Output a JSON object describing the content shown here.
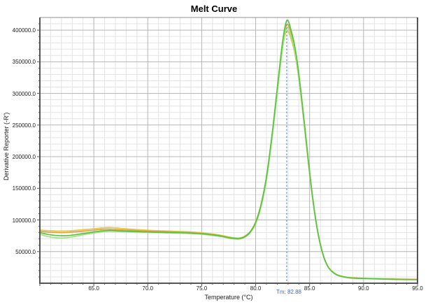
{
  "title": "Melt Curve",
  "chart_data": {
    "type": "line",
    "title": "Melt Curve",
    "xlabel": "Temperature (°C)",
    "ylabel": "Derivative Reporter (-R')",
    "xlim": [
      60,
      95
    ],
    "ylim": [
      0,
      420000
    ],
    "grid": "on",
    "legend": "none",
    "x_minor_step": 1,
    "y_minor_step": 10000,
    "x_major_ticks": [
      65,
      70,
      75,
      80,
      85,
      90,
      95
    ],
    "x_tick_labels": [
      "65.0",
      "70.0",
      "75.0",
      "80.0",
      "85.0",
      "90.0",
      "95.0"
    ],
    "y_major_ticks": [
      50000,
      100000,
      150000,
      200000,
      250000,
      300000,
      350000,
      400000
    ],
    "y_tick_labels": [
      "50000.0",
      "100000.0",
      "150000.0",
      "200000.0",
      "250000.0",
      "300000.0",
      "350000.0",
      "400000.0"
    ],
    "x": [
      60,
      60.5,
      61,
      61.5,
      62,
      62.5,
      63,
      64,
      65,
      65.5,
      66,
      66.5,
      67,
      68,
      69,
      70,
      71,
      72,
      73,
      74,
      75,
      76,
      76.5,
      77,
      77.5,
      78,
      78.5,
      79,
      79.5,
      80,
      80.5,
      81,
      81.5,
      82,
      82.5,
      82.88,
      83.25,
      83.75,
      84.25,
      84.75,
      85.25,
      85.75,
      86.25,
      86.75,
      87.5,
      88.5,
      89.5,
      91,
      93,
      95
    ],
    "series": [
      {
        "name": "yellow",
        "color": "#e0c94f",
        "values": [
          84000,
          83500,
          83000,
          82600,
          82400,
          82600,
          83000,
          84500,
          86000,
          87000,
          87800,
          88000,
          87400,
          86000,
          84800,
          83800,
          83000,
          82400,
          81800,
          81000,
          79800,
          77800,
          76600,
          75000,
          73200,
          71800,
          71500,
          74500,
          82000,
          97000,
          125000,
          167000,
          229000,
          303000,
          374000,
          398000,
          388000,
          352000,
          288000,
          210000,
          137000,
          81000,
          45000,
          25000,
          13800,
          9500,
          8200,
          7400,
          6600,
          6200
        ]
      },
      {
        "name": "orange",
        "color": "#e0a14f",
        "values": [
          82000,
          81200,
          80600,
          80200,
          80000,
          80200,
          80800,
          82200,
          83800,
          84800,
          85400,
          85600,
          85000,
          84000,
          83200,
          82400,
          81800,
          81200,
          80600,
          80000,
          78800,
          77000,
          75800,
          74200,
          72400,
          71200,
          71000,
          74000,
          81500,
          96500,
          124500,
          167500,
          230000,
          305000,
          378000,
          409000,
          396000,
          358000,
          292000,
          213000,
          138000,
          81500,
          45000,
          24800,
          13600,
          9200,
          8000,
          7200,
          6400,
          6000
        ]
      },
      {
        "name": "light-green",
        "color": "#a6df85",
        "values": [
          77500,
          74800,
          72800,
          71800,
          71500,
          72000,
          73200,
          76500,
          79500,
          80800,
          81800,
          82200,
          81900,
          81300,
          80800,
          80300,
          79900,
          79500,
          79100,
          78500,
          77400,
          75500,
          74400,
          72900,
          71200,
          70000,
          69900,
          72800,
          80000,
          94000,
          121000,
          163000,
          226000,
          300000,
          372000,
          404000,
          392000,
          354000,
          289000,
          211000,
          137000,
          80000,
          44000,
          24500,
          13000,
          8800,
          7600,
          6800,
          6000,
          5600
        ]
      },
      {
        "name": "green",
        "color": "#58c43e",
        "values": [
          80000,
          78000,
          76500,
          75500,
          75000,
          75200,
          76000,
          78500,
          81000,
          82200,
          83000,
          83400,
          83000,
          82200,
          81600,
          81000,
          80600,
          80200,
          79800,
          79200,
          78200,
          76400,
          75300,
          73800,
          72000,
          70800,
          70600,
          73500,
          81000,
          96000,
          124000,
          168000,
          232000,
          308000,
          382000,
          415000,
          402000,
          362000,
          295000,
          215000,
          140000,
          82000,
          45000,
          25000,
          13500,
          9000,
          7800,
          7000,
          6200,
          5800
        ]
      }
    ],
    "annotation": {
      "tm_label": "Tm: 82.88",
      "tm_value": 82.88,
      "peak_value": 415000,
      "line_color": "#6b93d6",
      "text_color": "#3a6bd0"
    },
    "colors": {
      "grid_minor": "#e3e3e3",
      "grid_major": "#b5b5b5",
      "axis_border": "#555555",
      "top_border": "#919191",
      "tick": "#555555"
    }
  }
}
